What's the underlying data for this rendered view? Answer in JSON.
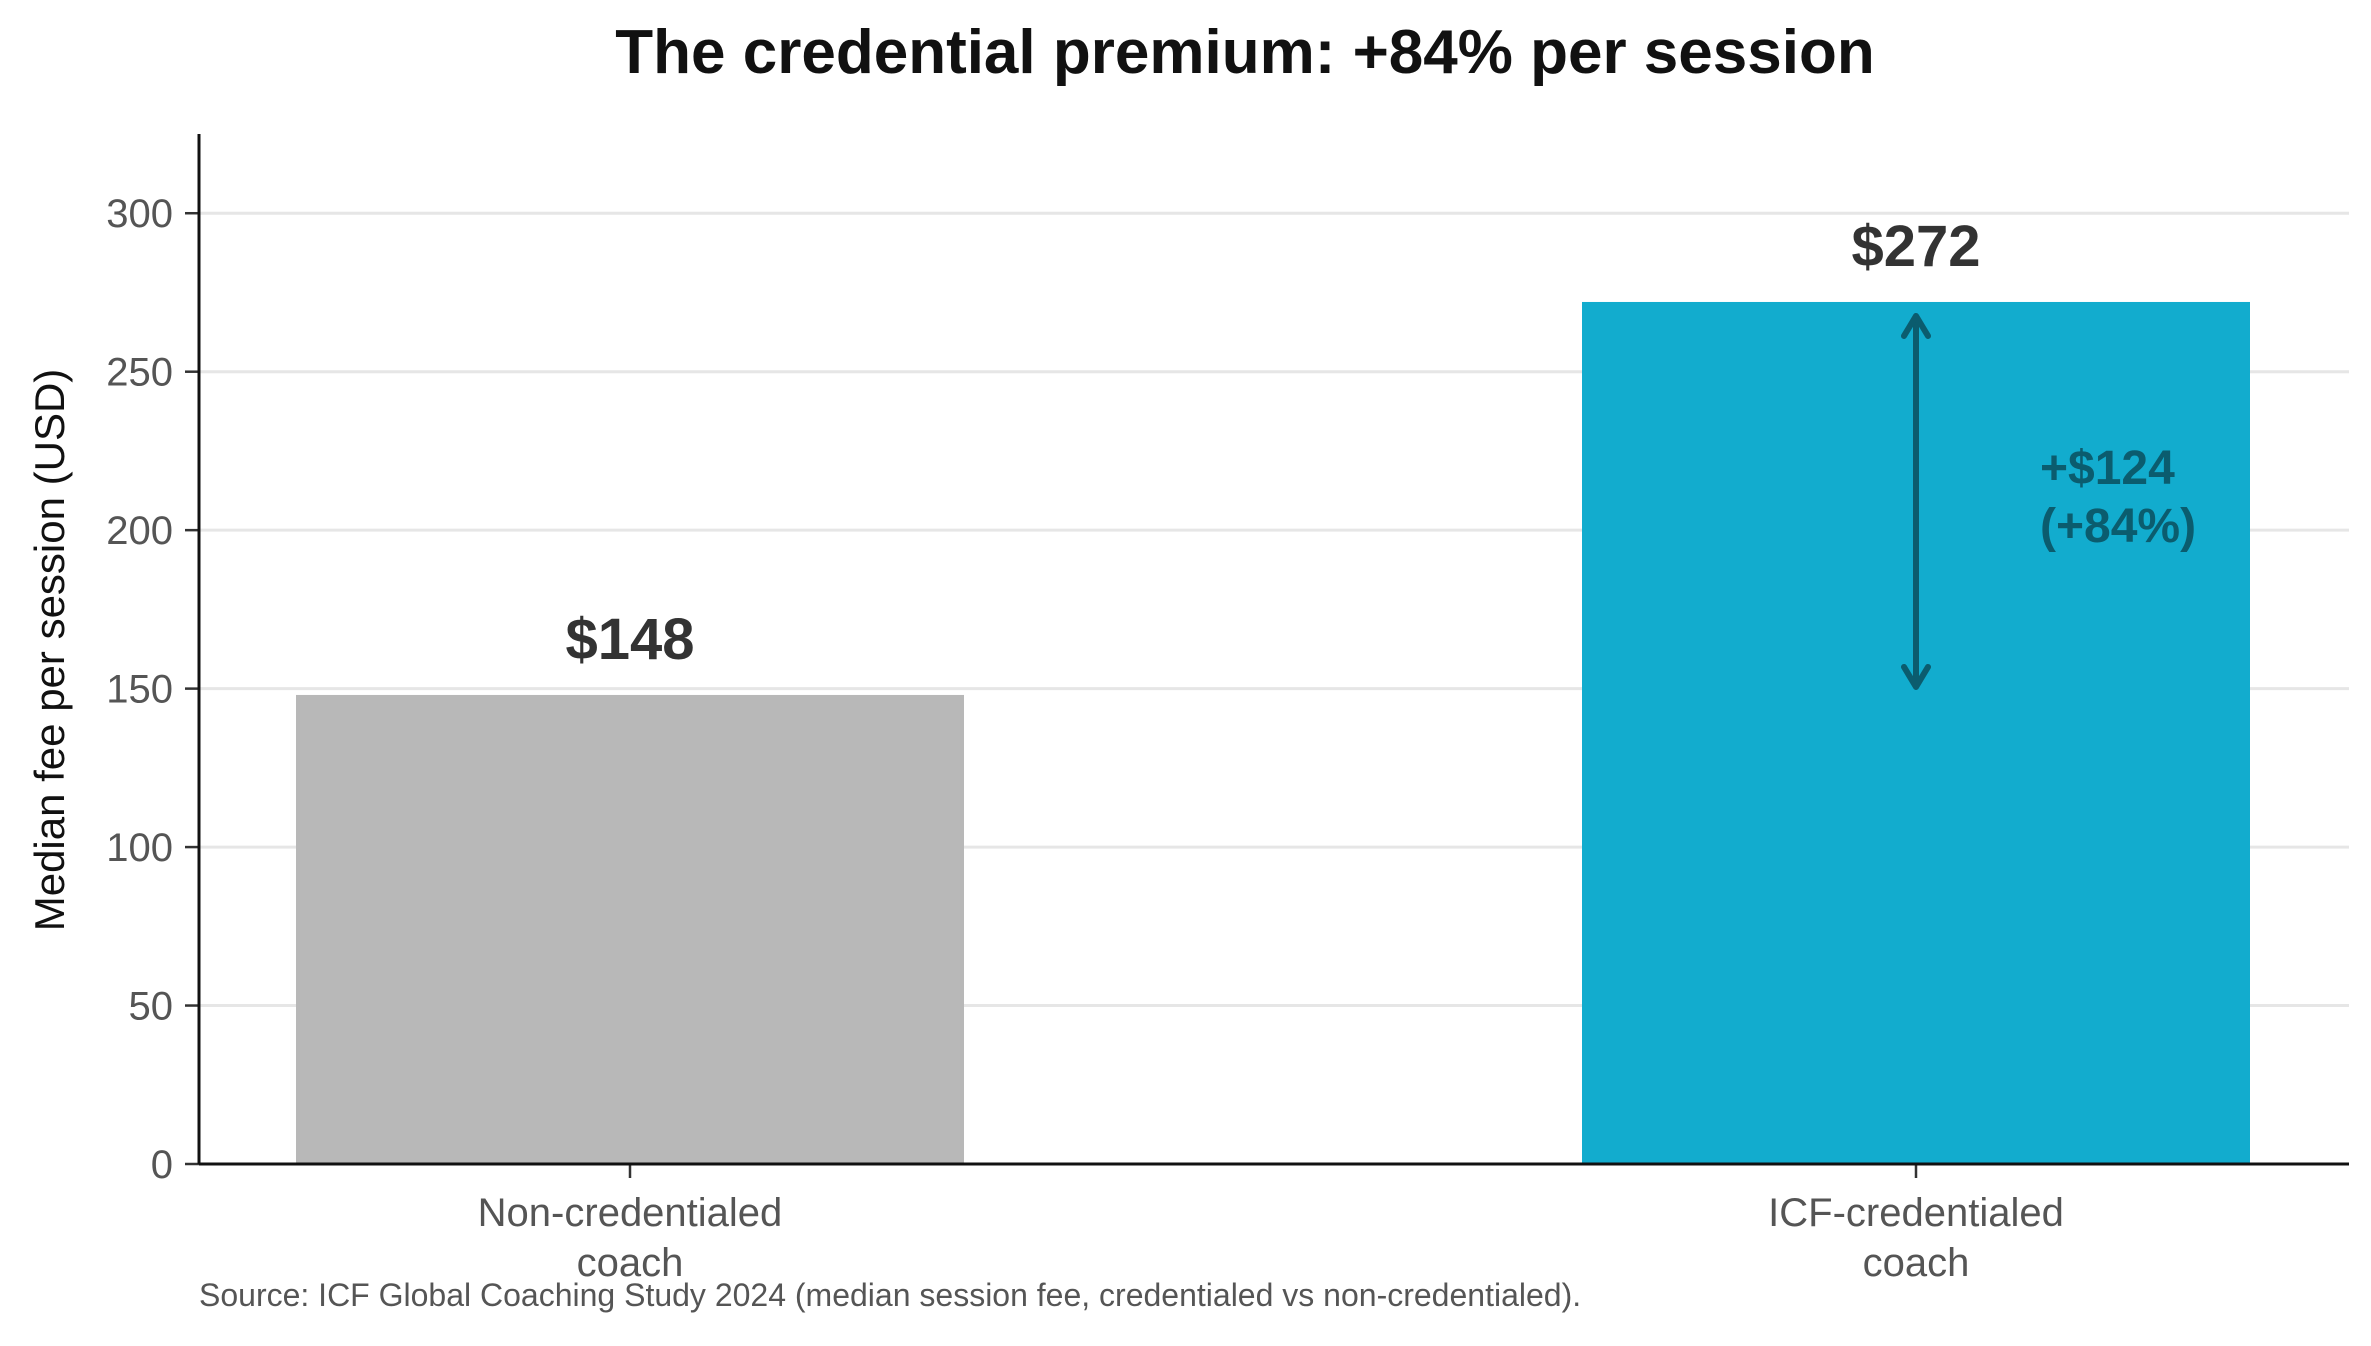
{
  "chart_data": {
    "type": "bar",
    "title": "The credential premium: +84% per session",
    "ylabel": "Median fee per session (USD)",
    "xlabel": "",
    "ylim": [
      0,
      325
    ],
    "yticks": [
      0,
      50,
      100,
      150,
      200,
      250,
      300
    ],
    "grid": true,
    "categories": [
      [
        "Non-credentialed",
        "coach"
      ],
      [
        "ICF-credentialed",
        "coach"
      ]
    ],
    "values": [
      148,
      272
    ],
    "value_labels": [
      "$148",
      "$272"
    ],
    "colors": [
      "#b8b8b8",
      "#12acce"
    ],
    "annotation": {
      "from": 148,
      "to": 272,
      "lines": [
        "+$124",
        "(+84%)"
      ],
      "color": "#0b5c6e"
    },
    "source": "Source: ICF Global Coaching Study 2024 (median session fee, credentialed vs non-credentialed)."
  }
}
